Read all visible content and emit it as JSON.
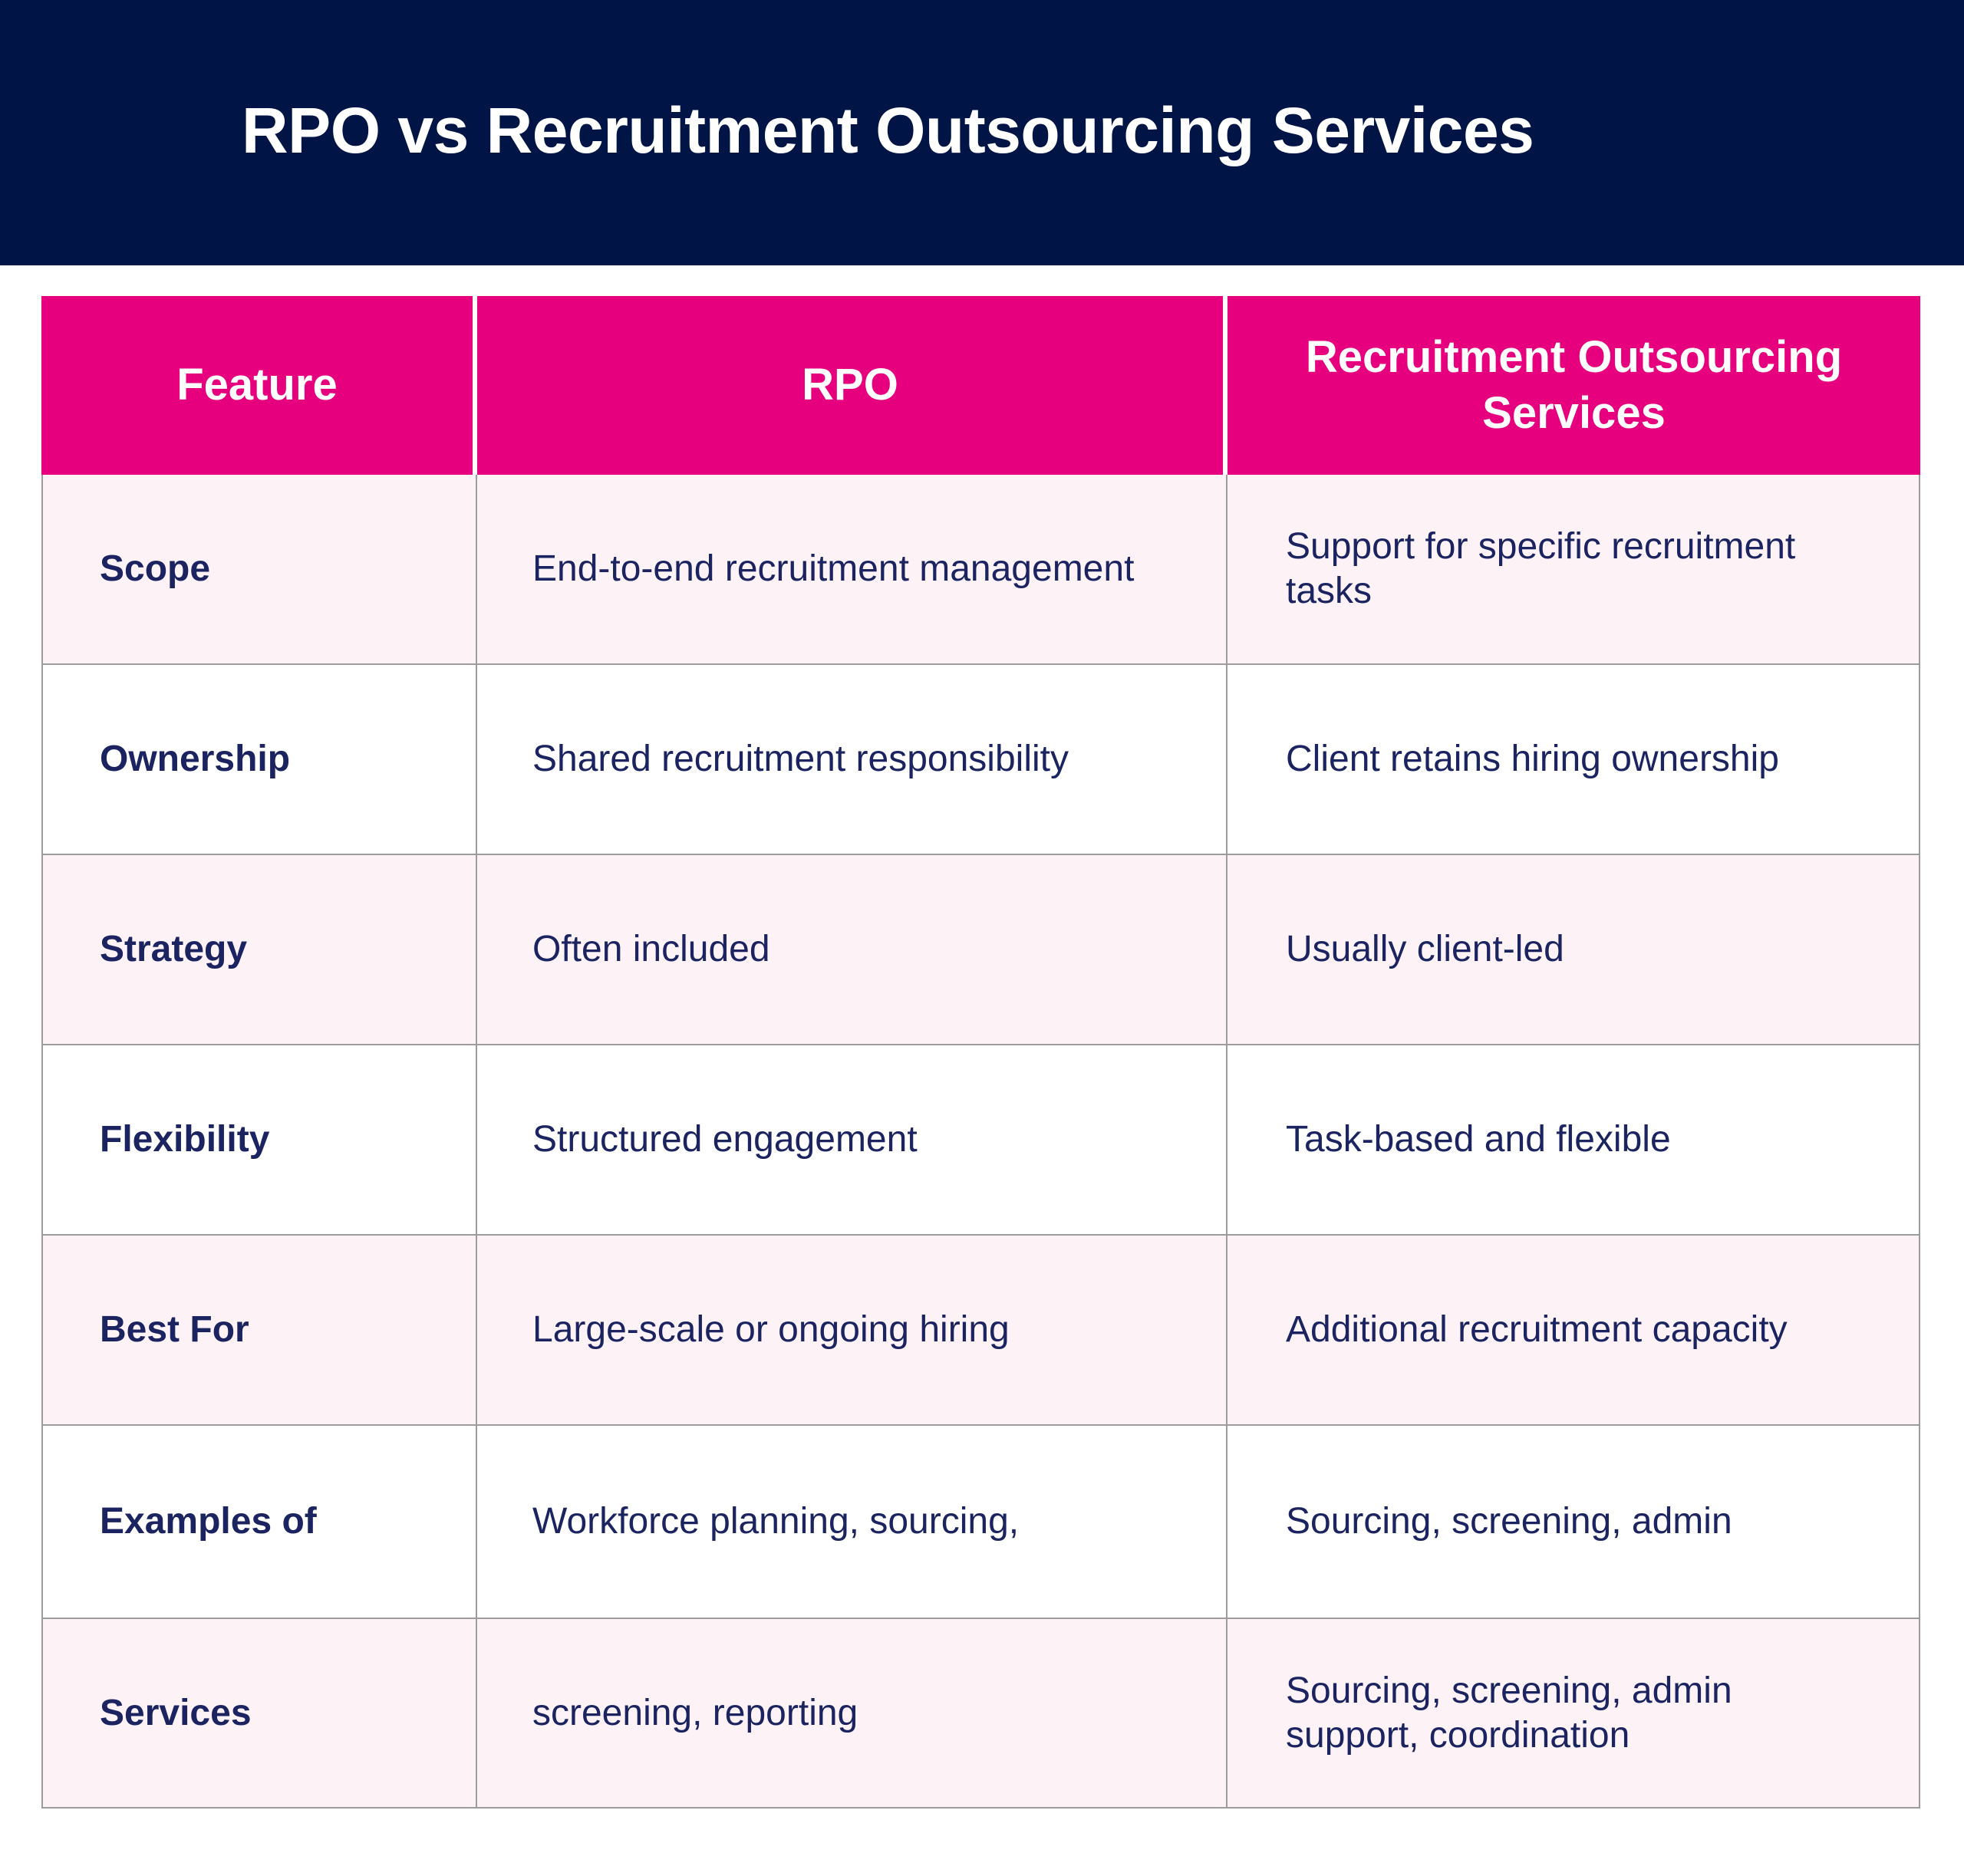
{
  "title": "RPO vs Recruitment Outsourcing Services",
  "colors": {
    "header_band": "#001446",
    "table_header": "#e6007e",
    "row_tint": "#fdf3f7",
    "text": "#1b2460",
    "grid_line": "#9c9c9c"
  },
  "table": {
    "headers": [
      "Feature",
      "RPO",
      "Recruitment Outsourcing Services"
    ],
    "rows": [
      {
        "feature": "Scope",
        "rpo": "End-to-end recruitment management",
        "ros": "Support for specific recruitment tasks"
      },
      {
        "feature": "Ownership",
        "rpo": "Shared recruitment responsibility",
        "ros": "Client retains hiring ownership"
      },
      {
        "feature": "Strategy",
        "rpo": "Often included",
        "ros": "Usually client-led"
      },
      {
        "feature": "Flexibility",
        "rpo": "Structured engagement",
        "ros": "Task-based and flexible"
      },
      {
        "feature": "Best For",
        "rpo": "Large-scale or ongoing hiring",
        "ros": "Additional recruitment capacity"
      },
      {
        "feature": "Examples of",
        "rpo": "Workforce planning, sourcing,",
        "ros": "Sourcing, screening, admin"
      },
      {
        "feature": "Services",
        "rpo": "screening, reporting",
        "ros": "Sourcing, screening, admin support, coordination"
      }
    ]
  }
}
